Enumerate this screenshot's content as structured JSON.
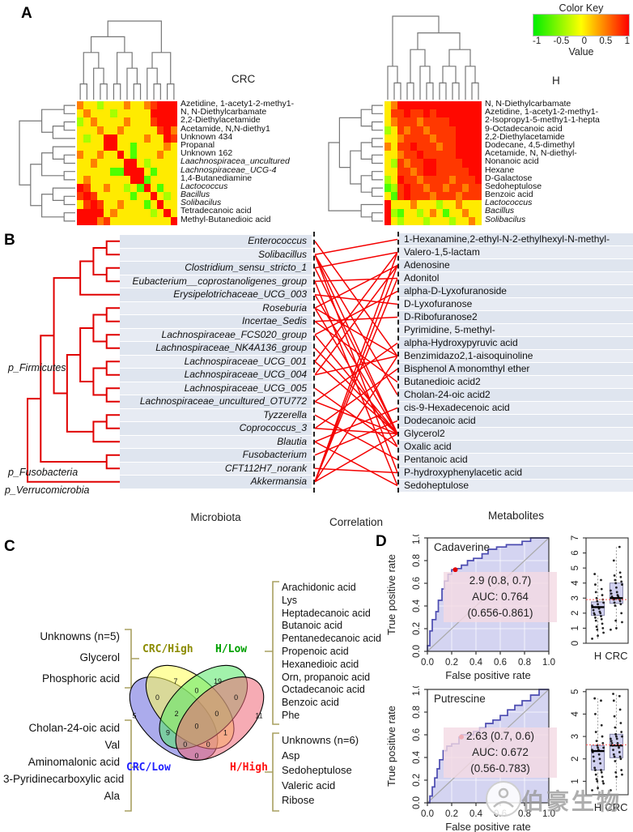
{
  "panel_labels": {
    "a": "A",
    "b": "B",
    "c": "C",
    "d": "D"
  },
  "color_key": {
    "title": "Color Key",
    "ticks": [
      "-1",
      "-0.5",
      "0",
      "0.5",
      "1"
    ],
    "label": "Value",
    "gradient": [
      "#00ee00",
      "#ffff00",
      "#ff0000"
    ]
  },
  "watermark": {
    "text": "伯豪生物"
  },
  "chart_data": [
    {
      "id": "heatmap-crc",
      "type": "heatmap",
      "title": "CRC",
      "value_range": [
        -1,
        1
      ],
      "row_labels": [
        "Azetidine, 1-acety1-2-methy1-",
        "N, N-Diethylcarbamate",
        "2,2-Diethylacetamide",
        "Acetamide, N,N-diethy1",
        "Unknown 434",
        "Propanal",
        "Unknown 162",
        "Laachnospiracea_uncultured",
        "Lachnospiraceae_UCG-4",
        "1,4-Butanediamine",
        "Lactococcus",
        "Bacillus",
        "Solibacilus",
        "Tetradecanoic acid",
        "Methyl-Butanedioic acid"
      ],
      "italic_rows": [
        7,
        8,
        10,
        11,
        12
      ],
      "code_values": {
        "G": -0.7,
        "g": -0.35,
        "Y": 0.08,
        "O": 0.5,
        "r": 0.78,
        "R": 0.97
      },
      "matrix": [
        "OYYgYYYOYYOrRRR",
        "YOYYYgYYYYYRRRR",
        "gYOYYYYOYYYrRRR",
        "YYYOYYOYYYYYrRO",
        "YgYYRRYYYYOYYRr",
        "YYYYRRYYGYYYYOY",
        "OYYOYYRYGYYYOYY",
        "YYOYYYYRRYgYYYY",
        "YYYYYGGRRRYGYYY",
        "YOYYYYYYRRGYYYY",
        "RrYYOYYgYGRYGYY",
        "rRrYYYYYGYYRYgY",
        "YrRrYYOYYYGYRYY",
        "RRRRYOYYYYYgYRY",
        "RRROrYYYYYYYYYR"
      ]
    },
    {
      "id": "heatmap-h",
      "type": "heatmap",
      "title": "H",
      "value_range": [
        -1,
        1
      ],
      "row_labels": [
        "N, N-Diethylcarbamate",
        "Azetidine, 1-acety1-2-methy1-",
        "2-Isopropy1-5-methy1-1-hepta",
        "9-Octadecanoic acid",
        "2,2-Diethylacetamide",
        "Dodecane, 4,5-dimethyl",
        "Acetamide, N, N-diethyl-",
        "Nonanoic acid",
        "Hexane",
        "D-Galactose",
        "Sedoheptulose",
        "Benzoic acid",
        "Lactococcus",
        "Bacillus",
        "Solibacilus"
      ],
      "italic_rows": [
        12,
        13,
        14
      ],
      "code_values": {
        "G": -0.7,
        "g": -0.35,
        "Y": 0.08,
        "O": 0.5,
        "r": 0.78,
        "R": 0.97
      },
      "matrix": [
        "YORRRRRRRRRRRRR",
        "YrrRrrRrRRRRRRR",
        "YOrrrOrrrrRRRRR",
        "gYrOrrOrrrrRRRR",
        "YYOrrrrOrrrRRRR",
        "OYrrRrrrOrrRRRR",
        "YYOrrRrrrrrRRRR",
        "YgrOrrRRrrrrRRR",
        "YYrrOrRRrrrrrRR",
        "gYRrrOrrrrOrrrR",
        "GgrRrrOrrOrrOrr",
        "YGrRrrrOrrrOrrr",
        "RYYYOYYYgYYOYYY",
        "RgGYYgYOYGYYOYY",
        "RYgYYYgYYYgYYOY"
      ]
    },
    {
      "id": "correlation-network",
      "type": "network",
      "line_color": "#f40000",
      "phyla": [
        "p_Firmicutes",
        "p_Fusobacteria",
        "p_Verrucomicrobia"
      ],
      "microbiota": [
        "Enterococcus",
        "Solibacillus",
        "Clostridium_sensu_stricto_1",
        "Eubacterium__coprostanoligenes_group",
        "Erysipelotrichaceae_UCG_003",
        "Roseburia",
        "Incertae_Sedis",
        "Lachnospiraceae_FCS020_group",
        "Lachnospiraceae_NK4A136_group",
        "Lachnospiraceae_UCG_001",
        "Lachnospiraceae_UCG_004",
        "Lachnospiraceae_UCG_005",
        "Lachnospiraceae_uncultured_OTU772",
        "Tyzzerella",
        "Coprococcus_3",
        "Blautia",
        "Fusobacterium",
        "CFT112H7_norank",
        "Akkermansia"
      ],
      "metabolites": [
        "1-Hexanamine,2-ethyl-N-2-ethylhexyl-N-methyl-",
        "Valero-1,5-lactam",
        "Adenosine",
        "Adonitol",
        "alpha-D-Lyxofuranoside",
        "D-Lyxofuranose",
        "D-Ribofuranose2",
        "Pyrimidine, 5-methyl-",
        "alpha-Hydroxypyruvic acid",
        "Benzimidazo2,1-aisoquinoline",
        "Bisphenol A monomthyl ether",
        "Butanedioic acid2",
        "Cholan-24-oic acid2",
        "cis-9-Hexadecenoic acid",
        "Dodecanoic acid",
        "Glycerol2",
        "Oxalic acid",
        "Pentanoic acid",
        "P-hydroxyphenylacetic acid",
        "Sedoheptulose"
      ],
      "links": [
        [
          0,
          9
        ],
        [
          1,
          0
        ],
        [
          1,
          12
        ],
        [
          1,
          15
        ],
        [
          1,
          18
        ],
        [
          2,
          1
        ],
        [
          2,
          15
        ],
        [
          3,
          3
        ],
        [
          3,
          19
        ],
        [
          4,
          5
        ],
        [
          4,
          15
        ],
        [
          5,
          2
        ],
        [
          5,
          9
        ],
        [
          5,
          16
        ],
        [
          6,
          6
        ],
        [
          6,
          11
        ],
        [
          7,
          4
        ],
        [
          7,
          15
        ],
        [
          8,
          15
        ],
        [
          9,
          1
        ],
        [
          9,
          15
        ],
        [
          10,
          2
        ],
        [
          10,
          9
        ],
        [
          11,
          16
        ],
        [
          12,
          8
        ],
        [
          12,
          15
        ],
        [
          13,
          17
        ],
        [
          14,
          10
        ],
        [
          14,
          15
        ],
        [
          15,
          13
        ],
        [
          15,
          19
        ],
        [
          16,
          14
        ],
        [
          17,
          18
        ],
        [
          18,
          1
        ],
        [
          18,
          2
        ],
        [
          18,
          3
        ],
        [
          18,
          9
        ],
        [
          18,
          15
        ]
      ],
      "captions": {
        "left": "Microbiota",
        "mid": "Correlation",
        "right": "Metabolites"
      }
    },
    {
      "id": "venn",
      "type": "venn",
      "sets": [
        {
          "label": "CRC/High",
          "color": "#8b8b00",
          "fill": "#ffff55"
        },
        {
          "label": "H/Low",
          "color": "#00a000",
          "fill": "#55e866"
        },
        {
          "label": "CRC/Low",
          "color": "#2222ff",
          "fill": "#6666dd"
        },
        {
          "label": "H/High",
          "color": "#ff1111",
          "fill": "#ee6677"
        }
      ],
      "regions": [
        {
          "name": "CRC/Low only",
          "n": "5"
        },
        {
          "name": "CRC/High only",
          "n": "7"
        },
        {
          "name": "H/Low only",
          "n": "19"
        },
        {
          "name": "H/High only",
          "n": "11"
        },
        {
          "name": "CRC/Low∩CRC/High",
          "n": "0"
        },
        {
          "name": "CRC/High∩H/Low",
          "n": "0"
        },
        {
          "name": "H/Low∩H/High",
          "n": "0"
        },
        {
          "name": "CRC/Low∩CRC/High∩H/Low",
          "n": "2"
        },
        {
          "name": "CRC/High∩H/Low∩H/High",
          "n": "0"
        },
        {
          "name": "CRC/Low∩H/Low",
          "n": "9"
        },
        {
          "name": "all four",
          "n": "0"
        },
        {
          "name": "CRC/High∩H/High",
          "n": "1"
        },
        {
          "name": "CRC/Low∩CRC/High∩H/High",
          "n": "0"
        },
        {
          "name": "CRC/Low∩H/Low∩H/High",
          "n": "0"
        },
        {
          "name": "CRC/Low∩H/High",
          "n": "0"
        }
      ],
      "groups": {
        "crc_high_items": [
          "Unknowns (n=5)",
          "Glycerol",
          "Phosphoric acid"
        ],
        "crc_low_items": [
          "Cholan-24-oic acid",
          "Val",
          "Aminomalonic acid",
          "3-Pyridinecarboxylic acid",
          "Ala"
        ],
        "h_low_items": [
          "Arachidonic acid",
          "Lys",
          "Heptadecanoic acid",
          "Butanoic acid",
          "Pentanedecanoic acid",
          "Propenoic acid",
          "Hexanedioic acid",
          "Orn, propanoic acid",
          "Octadecanoic acid",
          "Benzoic acid",
          "Phe"
        ],
        "h_high_items": [
          "Unknowns (n=6)",
          "Asp",
          "Sedoheptulose",
          "Valeric acid",
          "Ribose"
        ]
      }
    },
    {
      "id": "roc-cadaverine",
      "type": "line",
      "title": "Cadaverine",
      "cutoff_label": "2.9 (0.8, 0.7)",
      "auc_label": "AUC: 0.764",
      "ci_label": "(0.656-0.861)",
      "xlabel": "False positive rate",
      "ylabel": "True positive rate",
      "xticks": [
        "0.0",
        "0.2",
        "0.4",
        "0.6",
        "0.8",
        "1.0"
      ],
      "yticks": [
        "0.0",
        "0.2",
        "0.4",
        "0.6",
        "0.8",
        "1.0"
      ],
      "dot": [
        0.23,
        0.72
      ],
      "curve": [
        [
          0,
          0
        ],
        [
          0,
          0.05
        ],
        [
          0.02,
          0.05
        ],
        [
          0.02,
          0.18
        ],
        [
          0.04,
          0.18
        ],
        [
          0.04,
          0.28
        ],
        [
          0.07,
          0.28
        ],
        [
          0.07,
          0.35
        ],
        [
          0.09,
          0.35
        ],
        [
          0.09,
          0.45
        ],
        [
          0.12,
          0.45
        ],
        [
          0.12,
          0.55
        ],
        [
          0.14,
          0.55
        ],
        [
          0.14,
          0.62
        ],
        [
          0.17,
          0.62
        ],
        [
          0.17,
          0.68
        ],
        [
          0.2,
          0.68
        ],
        [
          0.2,
          0.72
        ],
        [
          0.23,
          0.72
        ],
        [
          0.23,
          0.73
        ],
        [
          0.28,
          0.73
        ],
        [
          0.28,
          0.76
        ],
        [
          0.33,
          0.76
        ],
        [
          0.33,
          0.8
        ],
        [
          0.38,
          0.8
        ],
        [
          0.38,
          0.82
        ],
        [
          0.45,
          0.82
        ],
        [
          0.45,
          0.86
        ],
        [
          0.5,
          0.86
        ],
        [
          0.5,
          0.9
        ],
        [
          0.57,
          0.9
        ],
        [
          0.57,
          0.92
        ],
        [
          0.65,
          0.92
        ],
        [
          0.65,
          0.94
        ],
        [
          0.72,
          0.94
        ],
        [
          0.78,
          0.94
        ],
        [
          0.78,
          0.97
        ],
        [
          0.85,
          0.97
        ],
        [
          0.85,
          1
        ],
        [
          1,
          1
        ]
      ]
    },
    {
      "id": "roc-putrescine",
      "type": "line",
      "title": "Putrescine",
      "cutoff_label": "2.63 (0.7, 0.6)",
      "auc_label": "AUC: 0.672",
      "ci_label": "(0.56-0.783)",
      "xlabel": "False positive rate",
      "ylabel": "True positive rate",
      "xticks": [
        "0.0",
        "0.2",
        "0.4",
        "0.6",
        "0.8",
        "1.0"
      ],
      "yticks": [
        "0.0",
        "0.2",
        "0.4",
        "0.6",
        "0.8",
        "1.0"
      ],
      "dot": [
        0.28,
        0.58
      ],
      "curve": [
        [
          0,
          0
        ],
        [
          0.02,
          0
        ],
        [
          0.02,
          0.06
        ],
        [
          0.04,
          0.06
        ],
        [
          0.04,
          0.14
        ],
        [
          0.06,
          0.14
        ],
        [
          0.06,
          0.22
        ],
        [
          0.08,
          0.22
        ],
        [
          0.08,
          0.3
        ],
        [
          0.1,
          0.3
        ],
        [
          0.1,
          0.38
        ],
        [
          0.13,
          0.38
        ],
        [
          0.13,
          0.46
        ],
        [
          0.16,
          0.46
        ],
        [
          0.16,
          0.5
        ],
        [
          0.2,
          0.5
        ],
        [
          0.2,
          0.52
        ],
        [
          0.26,
          0.52
        ],
        [
          0.26,
          0.58
        ],
        [
          0.28,
          0.58
        ],
        [
          0.28,
          0.6
        ],
        [
          0.34,
          0.6
        ],
        [
          0.38,
          0.6
        ],
        [
          0.38,
          0.63
        ],
        [
          0.43,
          0.63
        ],
        [
          0.43,
          0.66
        ],
        [
          0.48,
          0.66
        ],
        [
          0.48,
          0.7
        ],
        [
          0.54,
          0.7
        ],
        [
          0.54,
          0.73
        ],
        [
          0.6,
          0.73
        ],
        [
          0.6,
          0.77
        ],
        [
          0.66,
          0.77
        ],
        [
          0.66,
          0.82
        ],
        [
          0.72,
          0.82
        ],
        [
          0.72,
          0.86
        ],
        [
          0.78,
          0.86
        ],
        [
          0.78,
          0.9
        ],
        [
          0.85,
          0.9
        ],
        [
          0.85,
          0.95
        ],
        [
          0.92,
          0.95
        ],
        [
          0.92,
          1
        ],
        [
          1,
          1
        ]
      ]
    },
    {
      "id": "box-cadaverine",
      "type": "box",
      "categories": [
        "H",
        "CRC"
      ],
      "ylim": [
        0,
        7
      ],
      "yticks": [
        "0",
        "1",
        "2",
        "3",
        "4",
        "5",
        "6",
        "7"
      ],
      "refline": 2.9,
      "series": [
        {
          "name": "H",
          "q1": 1.85,
          "median": 2.4,
          "q3": 2.75,
          "points": [
            0.3,
            0.5,
            0.7,
            0.9,
            1.0,
            1.1,
            1.3,
            1.5,
            1.6,
            1.7,
            1.8,
            1.9,
            2.0,
            2.0,
            2.1,
            2.2,
            2.3,
            2.4,
            2.4,
            2.5,
            2.6,
            2.7,
            2.8,
            2.9,
            3.0,
            3.2,
            3.4,
            3.6,
            3.9,
            4.2,
            4.6
          ]
        },
        {
          "name": "CRC",
          "q1": 2.65,
          "median": 3.0,
          "q3": 4.0,
          "points": [
            0.9,
            1.0,
            1.4,
            1.5,
            2.0,
            2.5,
            2.6,
            2.7,
            2.8,
            2.9,
            2.9,
            3.0,
            3.0,
            3.0,
            3.1,
            3.1,
            3.2,
            3.3,
            3.4,
            3.5,
            3.7,
            3.9,
            4.0,
            4.1,
            4.2,
            4.4,
            4.5,
            4.7,
            5.5,
            6.4
          ]
        }
      ]
    },
    {
      "id": "box-putrescine",
      "type": "box",
      "categories": [
        "H",
        "CRC"
      ],
      "ylim": [
        0.4,
        5.1
      ],
      "yticks": [
        "1",
        "2",
        "3",
        "4",
        "5"
      ],
      "refline": 2.63,
      "series": [
        {
          "name": "H",
          "q1": 1.5,
          "median": 2.35,
          "q3": 2.6,
          "points": [
            0.6,
            0.7,
            0.9,
            1.0,
            1.0,
            1.1,
            1.2,
            1.3,
            1.4,
            1.5,
            1.5,
            1.6,
            1.8,
            1.9,
            2.0,
            2.1,
            2.2,
            2.3,
            2.4,
            2.4,
            2.5,
            2.5,
            2.6,
            2.7,
            2.8,
            3.0,
            3.2,
            3.5,
            4.0,
            4.6,
            4.7
          ]
        },
        {
          "name": "CRC",
          "q1": 2.05,
          "median": 2.6,
          "q3": 3.1,
          "points": [
            0.6,
            1.2,
            1.3,
            1.4,
            1.5,
            1.9,
            2.0,
            2.1,
            2.1,
            2.2,
            2.3,
            2.4,
            2.5,
            2.6,
            2.6,
            2.7,
            2.7,
            2.8,
            2.9,
            2.9,
            3.0,
            3.0,
            3.1,
            3.2,
            3.4,
            3.6,
            3.9,
            4.2,
            4.6,
            4.8,
            4.9
          ]
        }
      ]
    }
  ]
}
